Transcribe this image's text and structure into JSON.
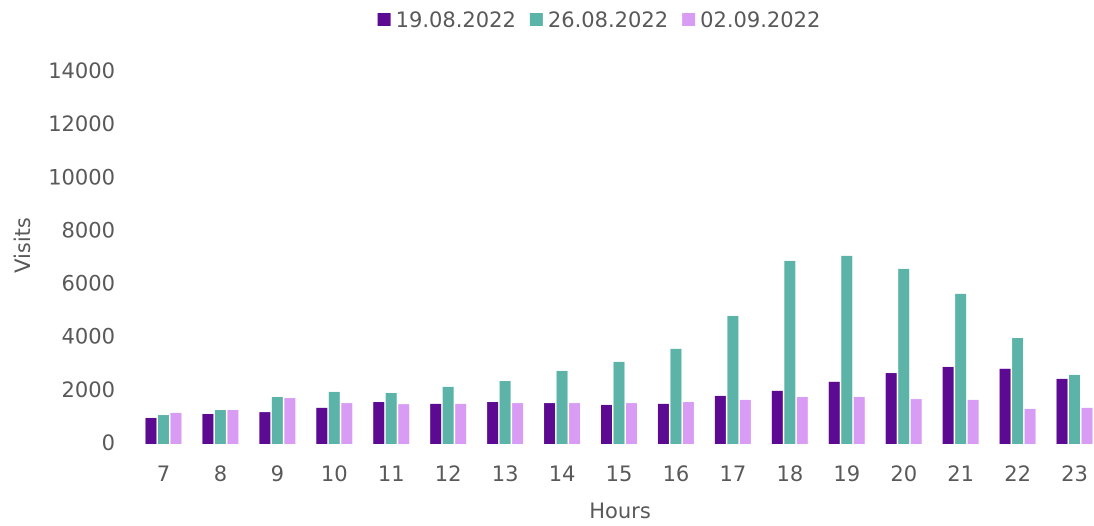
{
  "chart_data": {
    "type": "bar",
    "xlabel": "Hours",
    "ylabel": "Visits",
    "categories": [
      "7",
      "8",
      "9",
      "10",
      "11",
      "12",
      "13",
      "14",
      "15",
      "16",
      "17",
      "18",
      "19",
      "20",
      "21",
      "22",
      "23"
    ],
    "series": [
      {
        "name": "19.08.2022",
        "color": "#5b0a91",
        "values": [
          980,
          1130,
          1200,
          1360,
          1580,
          1510,
          1580,
          1540,
          1470,
          1510,
          1810,
          2000,
          2340,
          2670,
          2900,
          2830,
          2450
        ]
      },
      {
        "name": "26.08.2022",
        "color": "#5cb3a8",
        "values": [
          1090,
          1280,
          1770,
          1960,
          1920,
          2150,
          2370,
          2750,
          3090,
          3580,
          4820,
          6890,
          7080,
          6590,
          5650,
          3990,
          2600
        ]
      },
      {
        "name": "02.09.2022",
        "color": "#d99cf5",
        "values": [
          1170,
          1280,
          1730,
          1540,
          1500,
          1510,
          1540,
          1540,
          1540,
          1580,
          1660,
          1770,
          1770,
          1690,
          1660,
          1320,
          1360
        ]
      }
    ],
    "ylim": [
      0,
      14000
    ],
    "yticks": [
      0,
      2000,
      4000,
      6000,
      8000,
      10000,
      12000,
      14000
    ],
    "grid": false,
    "legend": "top"
  }
}
